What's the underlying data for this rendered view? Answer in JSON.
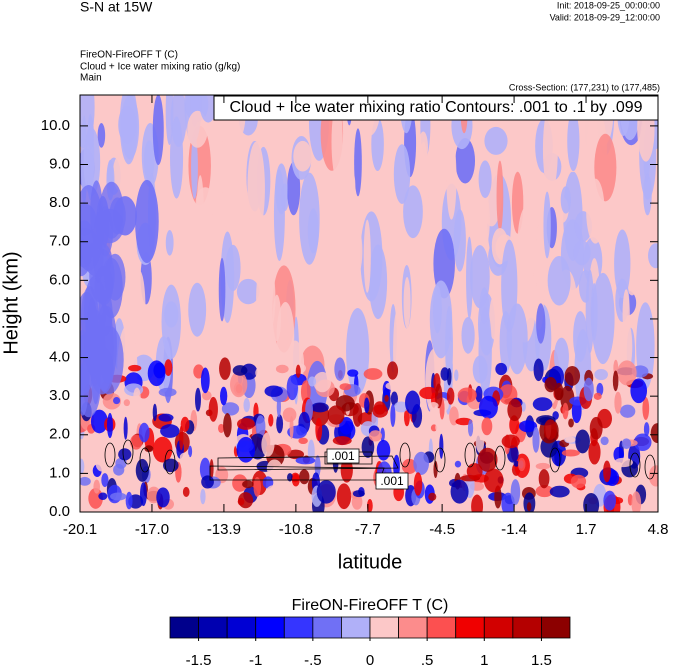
{
  "chart_data": {
    "type": "contour",
    "title": "S-N at 15W",
    "init": "Init: 2018-09-25_00:00:00",
    "valid": "Valid: 2018-09-29_12:00:00",
    "field_label": "FireON-FireOFF T   (C)",
    "contour_field_label": "Cloud + Ice water mixing ratio   (g/kg)",
    "subtitle": "Main",
    "cross_section": "Cross-Section: (177,231) to (177,485)",
    "info_box": "Cloud + Ice water mixing ratio Contours: .001 to .1 by .099",
    "xlabel": "latitude",
    "ylabel": "Height (km)",
    "xlim": [
      -20.1,
      4.8
    ],
    "xticks": [
      -20.1,
      {
        "value": -17.0,
        "label": "-17.0"
      },
      -13.9,
      -10.8,
      -7.7,
      -4.5,
      -1.4,
      1.7,
      4.8
    ],
    "ylim": [
      0,
      10.8
    ],
    "yticks": [
      {
        "value": 0,
        "label": "0.0"
      },
      {
        "value": 1,
        "label": "1.0"
      },
      {
        "value": 2,
        "label": "2.0"
      },
      {
        "value": 3,
        "label": "3.0"
      },
      {
        "value": 4,
        "label": "4.0"
      },
      {
        "value": 5,
        "label": "5.0"
      },
      {
        "value": 6,
        "label": "6.0"
      },
      {
        "value": 7,
        "label": "7.0"
      },
      {
        "value": 8,
        "label": "8.0"
      },
      {
        "value": 9,
        "label": "9.0"
      },
      {
        "value": 10,
        "label": "10.0"
      }
    ],
    "contour_line_labels": [
      ".001",
      ".001"
    ],
    "colorbar": {
      "title": "FireON-FireOFF T  (C)",
      "lim": [
        -1.75,
        1.75
      ],
      "ticks": [
        -1.5,
        -1,
        {
          "value": -0.5,
          "label": "-.5"
        },
        0,
        {
          "value": 0.5,
          "label": ".5"
        },
        1,
        1.5
      ],
      "colors": [
        "#00008c",
        "#0000b0",
        "#0000d4",
        "#0000ff",
        "#3535ff",
        "#7070f5",
        "#b0b0f8",
        "#fcc8c8",
        "#fc8c8c",
        "#fc5050",
        "#f00000",
        "#d20000",
        "#b40000",
        "#8c0000"
      ]
    }
  }
}
